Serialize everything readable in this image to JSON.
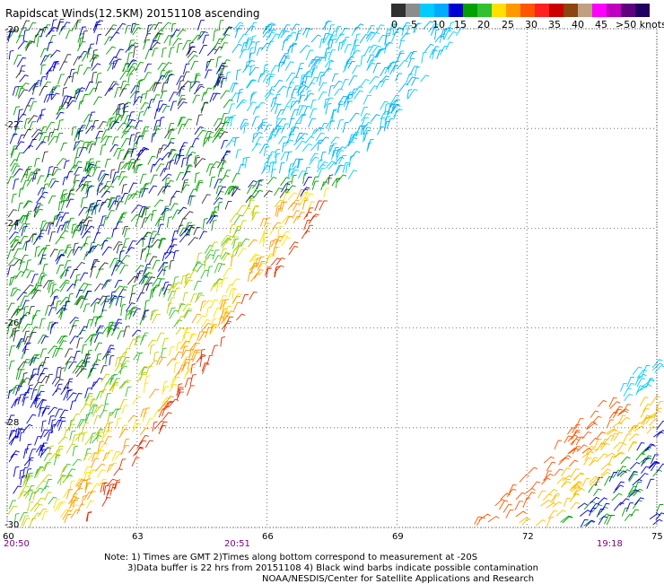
{
  "title": "Rapidscat Winds(12.5KM) 20151108 ascending",
  "legend": {
    "ticks": [
      "0",
      "5",
      "10",
      "15",
      "20",
      "25",
      "30",
      "35",
      "40",
      "45",
      ">50 knots"
    ],
    "colors": [
      "#303030",
      "#8c8c8c",
      "#00ccff",
      "#00aaff",
      "#0000d0",
      "#00a000",
      "#30c030",
      "#ffe000",
      "#ff9900",
      "#ff5500",
      "#ff2020",
      "#cc0000",
      "#8b4513",
      "#c0a080",
      "#ff00ff",
      "#c000c0",
      "#600080",
      "#200060"
    ]
  },
  "axes": {
    "lat_labels": [
      "-20",
      "-22",
      "-24",
      "-26",
      "-28",
      "-30"
    ],
    "lon_labels": [
      "60",
      "63",
      "66",
      "69",
      "72",
      "75"
    ],
    "lon_range": [
      60,
      75
    ],
    "lat_range": [
      -20,
      -30
    ]
  },
  "time_labels": [
    "20:50",
    "20:51",
    "19:18"
  ],
  "notes": [
    "Note: 1) Times are GMT 2)Times along bottom correspond to measurement at -20S",
    "3)Data buffer is 22 hrs from 20151108 4) Black wind barbs indicate possible contamination",
    "NOAA/NESDIS/Center for Satellite Applications and Research"
  ]
}
